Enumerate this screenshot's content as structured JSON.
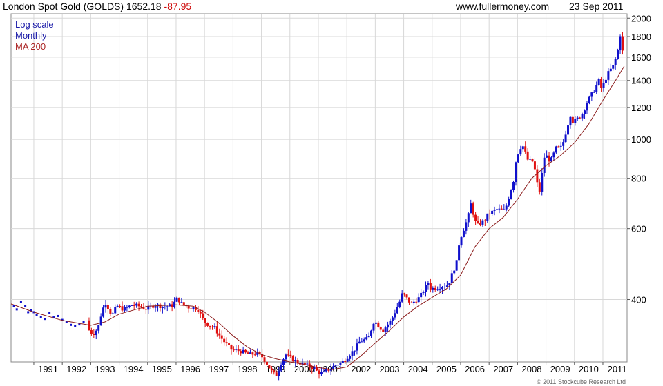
{
  "header": {
    "title": "London Spot Gold (GOLDS) 1652.18",
    "change": "-87.95",
    "site": "www.fullermoney.com",
    "date": "23 Sep 2011"
  },
  "legend": {
    "scale": "Log scale",
    "period": "Monthly",
    "ma": "MA 200"
  },
  "copyright": "© 2011 Stockcube Research Ltd",
  "colors": {
    "up": "#1010cc",
    "down": "#e01010",
    "ma": "#8b1a1a",
    "grid": "#d8d8d8"
  },
  "chart_data": {
    "type": "candlestick",
    "scale": "log",
    "ylim": [
      280,
      2050
    ],
    "xlim": [
      1990.2,
      2011.85
    ],
    "y_ticks": [
      400,
      600,
      800,
      1000,
      1200,
      1400,
      1600,
      1800,
      2000
    ],
    "x_ticks": [
      "1991",
      "1992",
      "1993",
      "1994",
      "1995",
      "1996",
      "1997",
      "1998",
      "1999",
      "2000",
      "2001",
      "2002",
      "2003",
      "2004",
      "2005",
      "2006",
      "2007",
      "2008",
      "2009",
      "2010",
      "2011"
    ],
    "grid": true,
    "early_points": [
      [
        1990.3,
        385
      ],
      [
        1990.4,
        378
      ],
      [
        1990.55,
        395
      ],
      [
        1990.7,
        386
      ],
      [
        1990.8,
        372
      ],
      [
        1990.9,
        376
      ],
      [
        1991.0,
        372
      ],
      [
        1991.1,
        366
      ],
      [
        1991.25,
        362
      ],
      [
        1991.4,
        358
      ],
      [
        1991.55,
        370
      ],
      [
        1991.7,
        361
      ],
      [
        1991.85,
        364
      ],
      [
        1992.0,
        356
      ],
      [
        1992.15,
        352
      ],
      [
        1992.3,
        346
      ],
      [
        1992.45,
        344
      ],
      [
        1992.6,
        347
      ],
      [
        1992.75,
        352
      ]
    ],
    "price_path": [
      [
        1992.9,
        355
      ],
      [
        1993.0,
        332
      ],
      [
        1993.15,
        330
      ],
      [
        1993.3,
        340
      ],
      [
        1993.4,
        365
      ],
      [
        1993.55,
        395
      ],
      [
        1993.7,
        375
      ],
      [
        1993.8,
        366
      ],
      [
        1993.95,
        386
      ],
      [
        1994.2,
        378
      ],
      [
        1994.5,
        388
      ],
      [
        1994.8,
        384
      ],
      [
        1995.0,
        379
      ],
      [
        1995.3,
        388
      ],
      [
        1995.6,
        384
      ],
      [
        1995.9,
        386
      ],
      [
        1996.1,
        404
      ],
      [
        1996.2,
        392
      ],
      [
        1996.5,
        382
      ],
      [
        1996.8,
        380
      ],
      [
        1997.0,
        355
      ],
      [
        1997.2,
        345
      ],
      [
        1997.4,
        340
      ],
      [
        1997.6,
        323
      ],
      [
        1997.8,
        310
      ],
      [
        1998.0,
        300
      ],
      [
        1998.3,
        298
      ],
      [
        1998.6,
        292
      ],
      [
        1998.9,
        294
      ],
      [
        1999.1,
        287
      ],
      [
        1999.4,
        265
      ],
      [
        1999.55,
        258
      ],
      [
        1999.75,
        280
      ],
      [
        1999.9,
        292
      ],
      [
        2000.0,
        288
      ],
      [
        2000.3,
        280
      ],
      [
        2000.6,
        275
      ],
      [
        2000.9,
        270
      ],
      [
        2001.0,
        265
      ],
      [
        2001.2,
        262
      ],
      [
        2001.4,
        268
      ],
      [
        2001.7,
        276
      ],
      [
        2001.9,
        280
      ],
      [
        2002.0,
        285
      ],
      [
        2002.3,
        300
      ],
      [
        2002.5,
        315
      ],
      [
        2002.8,
        320
      ],
      [
        2003.0,
        355
      ],
      [
        2003.3,
        335
      ],
      [
        2003.6,
        355
      ],
      [
        2003.9,
        395
      ],
      [
        2004.0,
        415
      ],
      [
        2004.3,
        390
      ],
      [
        2004.6,
        405
      ],
      [
        2004.9,
        440
      ],
      [
        2005.0,
        425
      ],
      [
        2005.3,
        430
      ],
      [
        2005.6,
        435
      ],
      [
        2005.9,
        495
      ],
      [
        2006.0,
        560
      ],
      [
        2006.3,
        640
      ],
      [
        2006.4,
        690
      ],
      [
        2006.6,
        610
      ],
      [
        2006.9,
        630
      ],
      [
        2007.0,
        650
      ],
      [
        2007.3,
        670
      ],
      [
        2007.6,
        665
      ],
      [
        2007.9,
        790
      ],
      [
        2008.0,
        900
      ],
      [
        2008.2,
        975
      ],
      [
        2008.4,
        890
      ],
      [
        2008.6,
        880
      ],
      [
        2008.8,
        730
      ],
      [
        2009.0,
        920
      ],
      [
        2009.2,
        880
      ],
      [
        2009.4,
        950
      ],
      [
        2009.6,
        955
      ],
      [
        2009.9,
        1150
      ],
      [
        2010.0,
        1100
      ],
      [
        2010.3,
        1150
      ],
      [
        2010.5,
        1240
      ],
      [
        2010.7,
        1310
      ],
      [
        2010.9,
        1400
      ],
      [
        2011.0,
        1330
      ],
      [
        2011.2,
        1450
      ],
      [
        2011.4,
        1520
      ],
      [
        2011.55,
        1630
      ],
      [
        2011.65,
        1820
      ],
      [
        2011.72,
        1652
      ]
    ],
    "ma_path": [
      [
        1990.2,
        390
      ],
      [
        1991.0,
        372
      ],
      [
        1992.0,
        355
      ],
      [
        1993.0,
        345
      ],
      [
        1993.5,
        352
      ],
      [
        1994.0,
        368
      ],
      [
        1995.0,
        385
      ],
      [
        1996.0,
        388
      ],
      [
        1996.6,
        385
      ],
      [
        1997.0,
        372
      ],
      [
        1997.5,
        350
      ],
      [
        1998.0,
        325
      ],
      [
        1998.5,
        305
      ],
      [
        1999.0,
        292
      ],
      [
        1999.5,
        285
      ],
      [
        2000.0,
        280
      ],
      [
        2000.5,
        276
      ],
      [
        2001.0,
        271
      ],
      [
        2001.5,
        268
      ],
      [
        2002.0,
        272
      ],
      [
        2002.5,
        290
      ],
      [
        2003.0,
        312
      ],
      [
        2003.5,
        335
      ],
      [
        2004.0,
        362
      ],
      [
        2004.5,
        385
      ],
      [
        2005.0,
        405
      ],
      [
        2005.5,
        425
      ],
      [
        2006.0,
        460
      ],
      [
        2006.5,
        540
      ],
      [
        2007.0,
        600
      ],
      [
        2007.5,
        640
      ],
      [
        2008.0,
        710
      ],
      [
        2008.5,
        800
      ],
      [
        2009.0,
        860
      ],
      [
        2009.5,
        910
      ],
      [
        2010.0,
        980
      ],
      [
        2010.5,
        1090
      ],
      [
        2011.0,
        1250
      ],
      [
        2011.5,
        1420
      ],
      [
        2011.75,
        1520
      ]
    ]
  }
}
